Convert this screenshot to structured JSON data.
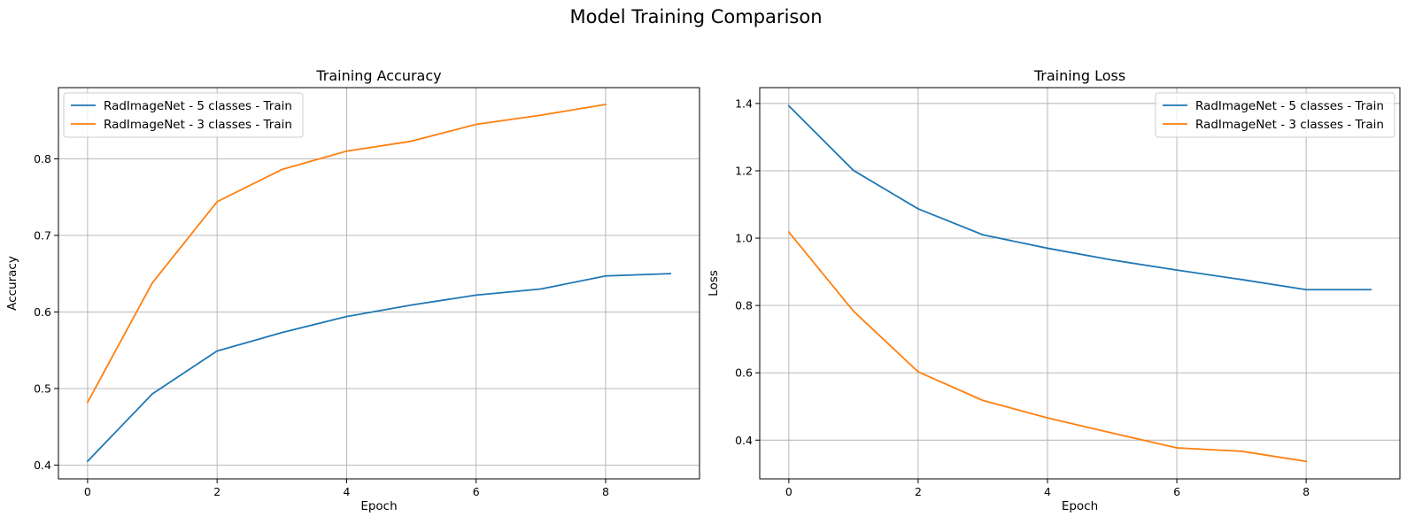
{
  "figure": {
    "title": "Model Training Comparison"
  },
  "chart_data": [
    {
      "type": "line",
      "title": "Training Accuracy",
      "xlabel": "Epoch",
      "ylabel": "Accuracy",
      "xlim": [
        -0.45,
        9.45
      ],
      "ylim": [
        0.382,
        0.893
      ],
      "xticks": [
        0,
        2,
        4,
        6,
        8
      ],
      "yticks": [
        0.4,
        0.5,
        0.6,
        0.7,
        0.8
      ],
      "ytick_labels": [
        "0.4",
        "0.5",
        "0.6",
        "0.7",
        "0.8"
      ],
      "grid": true,
      "legend_position": "upper-left",
      "series": [
        {
          "name": "RadImageNet - 5 classes - Train",
          "color": "#1f77b4",
          "x": [
            0,
            1,
            2,
            3,
            4,
            5,
            6,
            7,
            8,
            9
          ],
          "values": [
            0.405,
            0.493,
            0.549,
            0.573,
            0.594,
            0.609,
            0.622,
            0.63,
            0.647,
            0.65
          ]
        },
        {
          "name": "RadImageNet - 3 classes - Train",
          "color": "#ff7f0e",
          "x": [
            0,
            1,
            2,
            3,
            4,
            5,
            6,
            7,
            8
          ],
          "values": [
            0.482,
            0.638,
            0.744,
            0.786,
            0.81,
            0.823,
            0.845,
            0.857,
            0.871
          ]
        }
      ]
    },
    {
      "type": "line",
      "title": "Training Loss",
      "xlabel": "Epoch",
      "ylabel": "Loss",
      "xlim": [
        -0.45,
        9.45
      ],
      "ylim": [
        0.285,
        1.447
      ],
      "xticks": [
        0,
        2,
        4,
        6,
        8
      ],
      "yticks": [
        0.4,
        0.6,
        0.8,
        1.0,
        1.2,
        1.4
      ],
      "ytick_labels": [
        "0.4",
        "0.6",
        "0.8",
        "1.0",
        "1.2",
        "1.4"
      ],
      "grid": true,
      "legend_position": "upper-right",
      "series": [
        {
          "name": "RadImageNet - 5 classes - Train",
          "color": "#1f77b4",
          "x": [
            0,
            1,
            2,
            3,
            4,
            5,
            6,
            7,
            8,
            9
          ],
          "values": [
            1.393,
            1.201,
            1.087,
            1.01,
            0.97,
            0.935,
            0.905,
            0.877,
            0.847,
            0.847
          ]
        },
        {
          "name": "RadImageNet - 3 classes - Train",
          "color": "#ff7f0e",
          "x": [
            0,
            1,
            2,
            3,
            4,
            5,
            6,
            7,
            8
          ],
          "values": [
            1.018,
            0.783,
            0.603,
            0.518,
            0.466,
            0.421,
            0.377,
            0.367,
            0.337
          ]
        }
      ]
    }
  ]
}
